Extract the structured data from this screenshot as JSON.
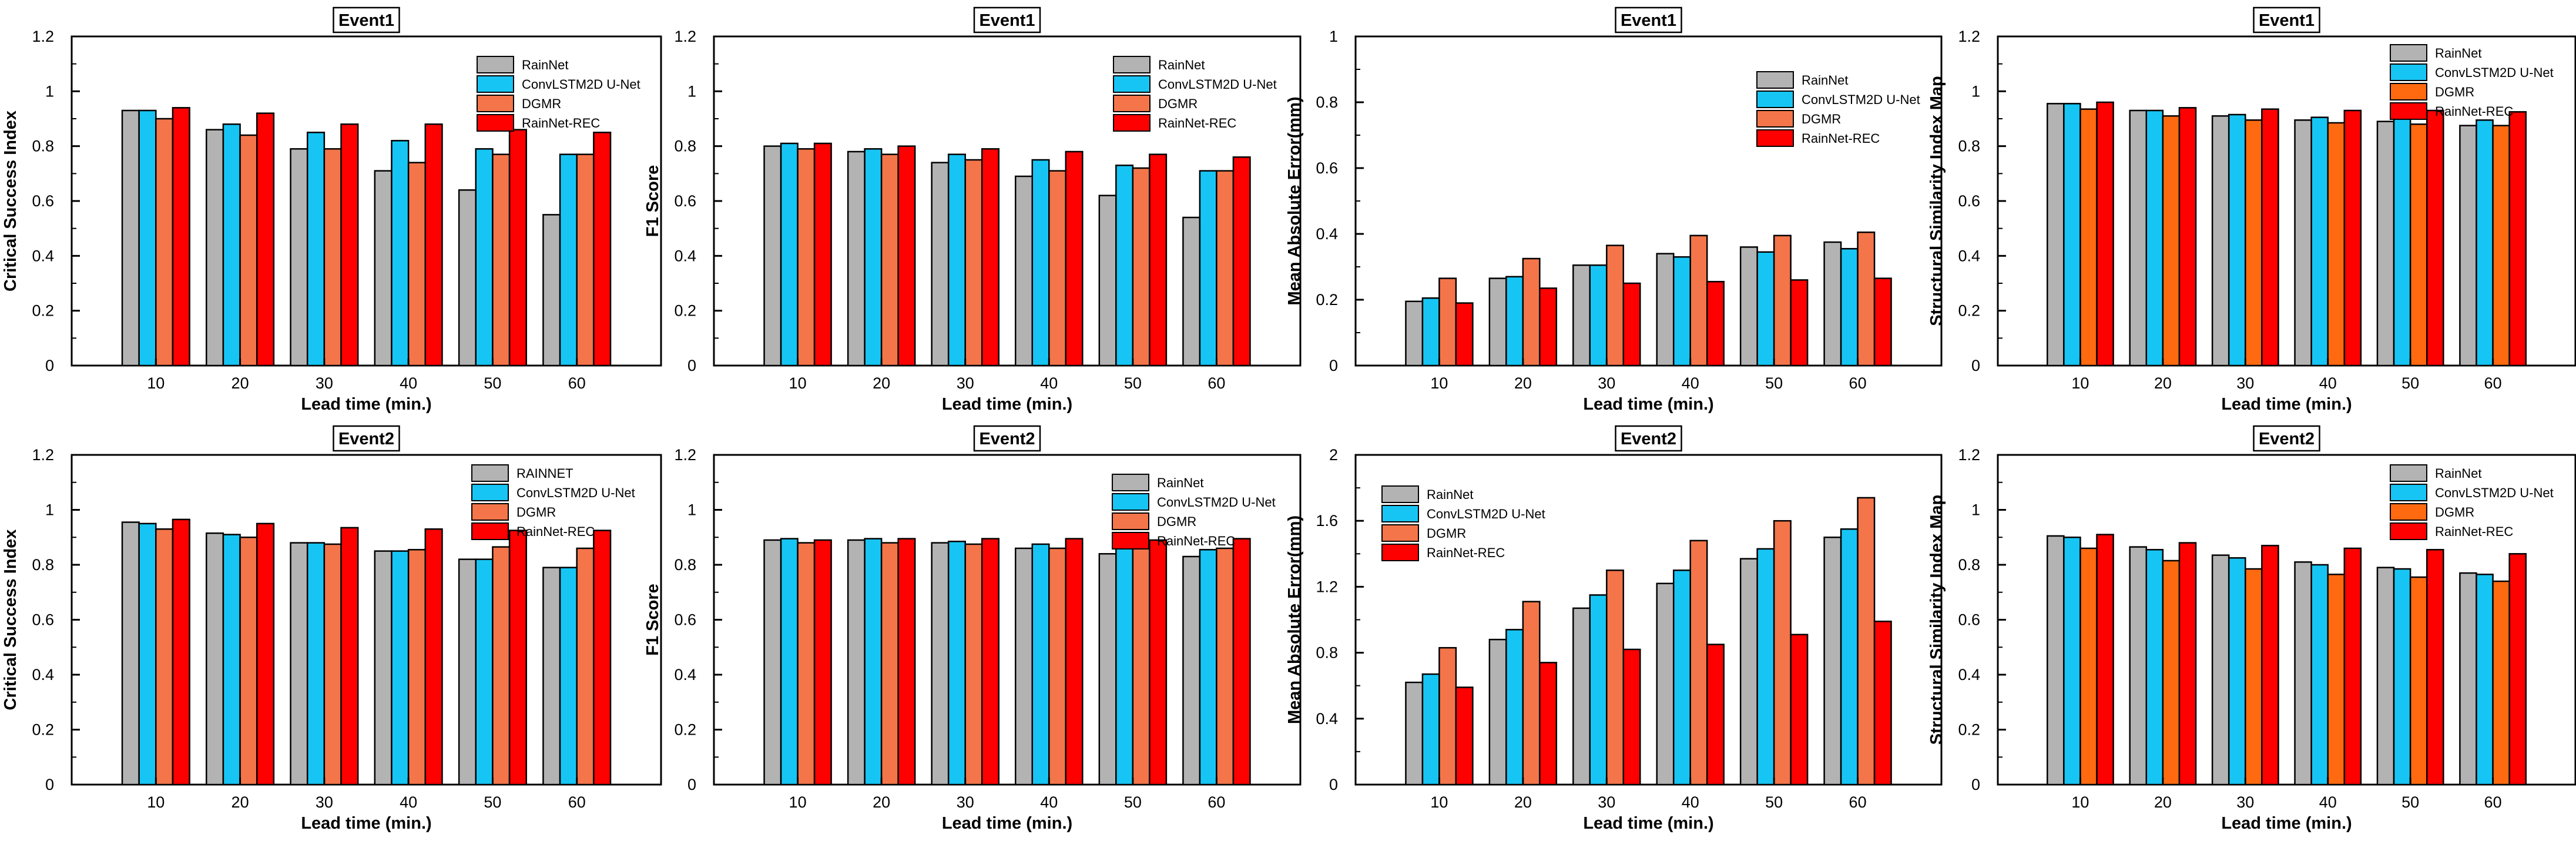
{
  "colors": {
    "RainNet": "#b3b3b3",
    "ConvLSTM2D U-Net": "#17c5f4",
    "DGMR": "#f4754a",
    "RainNet-REC": "#ff0000",
    "DGMR_ssim": "#ff6a10"
  },
  "chart_data": [
    {
      "type": "bar",
      "title": "Event1",
      "xlabel": "Lead time (min.)",
      "ylabel": "Critical Success Index",
      "categories": [
        "10",
        "20",
        "30",
        "40",
        "50",
        "60"
      ],
      "ylim": [
        0,
        1.2
      ],
      "yticks": [
        "0",
        "0.2",
        "0.4",
        "0.6",
        "0.8",
        "1",
        "1.2"
      ],
      "legend_position": "top-right",
      "series": [
        {
          "name": "RainNet",
          "values": [
            0.93,
            0.86,
            0.79,
            0.71,
            0.64,
            0.55
          ]
        },
        {
          "name": "ConvLSTM2D U-Net",
          "values": [
            0.93,
            0.88,
            0.85,
            0.82,
            0.79,
            0.77
          ]
        },
        {
          "name": "DGMR",
          "values": [
            0.9,
            0.84,
            0.79,
            0.74,
            0.77,
            0.77
          ]
        },
        {
          "name": "RainNet-REC",
          "values": [
            0.94,
            0.92,
            0.88,
            0.88,
            0.86,
            0.85
          ]
        }
      ]
    },
    {
      "type": "bar",
      "title": "Event1",
      "xlabel": "Lead time (min.)",
      "ylabel": "F1 Score",
      "categories": [
        "10",
        "20",
        "30",
        "40",
        "50",
        "60"
      ],
      "ylim": [
        0,
        1.2
      ],
      "yticks": [
        "0",
        "0.2",
        "0.4",
        "0.6",
        "0.8",
        "1",
        "1.2"
      ],
      "legend_position": "top-right",
      "series": [
        {
          "name": "RainNet",
          "values": [
            0.8,
            0.78,
            0.74,
            0.69,
            0.62,
            0.54
          ]
        },
        {
          "name": "ConvLSTM2D U-Net",
          "values": [
            0.81,
            0.79,
            0.77,
            0.75,
            0.73,
            0.71
          ]
        },
        {
          "name": "DGMR",
          "values": [
            0.79,
            0.77,
            0.75,
            0.71,
            0.72,
            0.71
          ]
        },
        {
          "name": "RainNet-REC",
          "values": [
            0.81,
            0.8,
            0.79,
            0.78,
            0.77,
            0.76
          ]
        }
      ]
    },
    {
      "type": "bar",
      "title": "Event1",
      "xlabel": "Lead time (min.)",
      "ylabel": "Mean Absolute Error(mm)",
      "categories": [
        "10",
        "20",
        "30",
        "40",
        "50",
        "60"
      ],
      "ylim": [
        0,
        1.0
      ],
      "yticks": [
        "0",
        "0.2",
        "0.4",
        "0.6",
        "0.8",
        "1"
      ],
      "legend_position": "top-right",
      "series": [
        {
          "name": "RainNet",
          "values": [
            0.195,
            0.265,
            0.305,
            0.34,
            0.36,
            0.375
          ]
        },
        {
          "name": "ConvLSTM2D U-Net",
          "values": [
            0.205,
            0.27,
            0.305,
            0.33,
            0.345,
            0.355
          ]
        },
        {
          "name": "DGMR",
          "values": [
            0.265,
            0.325,
            0.365,
            0.395,
            0.395,
            0.405
          ]
        },
        {
          "name": "RainNet-REC",
          "values": [
            0.19,
            0.235,
            0.25,
            0.255,
            0.26,
            0.265
          ]
        }
      ]
    },
    {
      "type": "bar",
      "title": "Event1",
      "xlabel": "Lead time (min.)",
      "ylabel": "Structural Similarity Index Map",
      "categories": [
        "10",
        "20",
        "30",
        "40",
        "50",
        "60"
      ],
      "ylim": [
        0,
        1.2
      ],
      "yticks": [
        "0",
        "0.2",
        "0.4",
        "0.6",
        "0.8",
        "1",
        "1.2"
      ],
      "legend_position": "top-right",
      "series": [
        {
          "name": "RainNet",
          "values": [
            0.955,
            0.93,
            0.91,
            0.895,
            0.89,
            0.875
          ]
        },
        {
          "name": "ConvLSTM2D U-Net",
          "values": [
            0.955,
            0.93,
            0.915,
            0.905,
            0.9,
            0.895
          ]
        },
        {
          "name": "DGMR",
          "values": [
            0.935,
            0.91,
            0.895,
            0.885,
            0.88,
            0.875
          ]
        },
        {
          "name": "RainNet-REC",
          "values": [
            0.96,
            0.94,
            0.935,
            0.93,
            0.93,
            0.925
          ]
        }
      ]
    },
    {
      "type": "bar",
      "title": "Event2",
      "xlabel": "Lead time (min.)",
      "ylabel": "Critical Success Index",
      "categories": [
        "10",
        "20",
        "30",
        "40",
        "50",
        "60"
      ],
      "ylim": [
        0,
        1.2
      ],
      "yticks": [
        "0",
        "0.2",
        "0.4",
        "0.6",
        "0.8",
        "1",
        "1.2"
      ],
      "legend_position": "top-right",
      "series": [
        {
          "name": "RAINNET",
          "values": [
            0.955,
            0.915,
            0.88,
            0.85,
            0.82,
            0.79
          ]
        },
        {
          "name": "ConvLSTM2D U-Net",
          "values": [
            0.95,
            0.91,
            0.88,
            0.85,
            0.82,
            0.79
          ]
        },
        {
          "name": "DGMR",
          "values": [
            0.93,
            0.9,
            0.875,
            0.855,
            0.865,
            0.86
          ]
        },
        {
          "name": "RainNet-REC",
          "values": [
            0.965,
            0.95,
            0.935,
            0.93,
            0.925,
            0.925
          ]
        }
      ]
    },
    {
      "type": "bar",
      "title": "Event2",
      "xlabel": "Lead time (min.)",
      "ylabel": "F1 Score",
      "categories": [
        "10",
        "20",
        "30",
        "40",
        "50",
        "60"
      ],
      "ylim": [
        0,
        1.2
      ],
      "yticks": [
        "0",
        "0.2",
        "0.4",
        "0.6",
        "0.8",
        "1",
        "1.2"
      ],
      "legend_position": "top-right",
      "series": [
        {
          "name": "RainNet",
          "values": [
            0.89,
            0.89,
            0.88,
            0.86,
            0.84,
            0.83
          ]
        },
        {
          "name": "ConvLSTM2D U-Net",
          "values": [
            0.895,
            0.895,
            0.885,
            0.875,
            0.86,
            0.855
          ]
        },
        {
          "name": "DGMR",
          "values": [
            0.88,
            0.88,
            0.875,
            0.86,
            0.865,
            0.86
          ]
        },
        {
          "name": "RainNet-REC",
          "values": [
            0.89,
            0.895,
            0.895,
            0.895,
            0.89,
            0.895
          ]
        }
      ]
    },
    {
      "type": "bar",
      "title": "Event2",
      "xlabel": "Lead time (min.)",
      "ylabel": "Mean Absolute Error(mm)",
      "categories": [
        "10",
        "20",
        "30",
        "40",
        "50",
        "60"
      ],
      "ylim": [
        0,
        2.0
      ],
      "yticks": [
        "0",
        "0.4",
        "0.8",
        "1.2",
        "1.6",
        "2"
      ],
      "legend_position": "top-left",
      "series": [
        {
          "name": "RainNet",
          "values": [
            0.62,
            0.88,
            1.07,
            1.22,
            1.37,
            1.5
          ]
        },
        {
          "name": "ConvLSTM2D U-Net",
          "values": [
            0.67,
            0.94,
            1.15,
            1.3,
            1.43,
            1.55
          ]
        },
        {
          "name": "DGMR",
          "values": [
            0.83,
            1.11,
            1.3,
            1.48,
            1.6,
            1.74
          ]
        },
        {
          "name": "RainNet-REC",
          "values": [
            0.59,
            0.74,
            0.82,
            0.85,
            0.91,
            0.99
          ]
        }
      ]
    },
    {
      "type": "bar",
      "title": "Event2",
      "xlabel": "Lead time (min.)",
      "ylabel": "Structural Similarity Index Map",
      "categories": [
        "10",
        "20",
        "30",
        "40",
        "50",
        "60"
      ],
      "ylim": [
        0,
        1.2
      ],
      "yticks": [
        "0",
        "0.2",
        "0.4",
        "0.6",
        "0.8",
        "1",
        "1.2"
      ],
      "legend_position": "top-right",
      "series": [
        {
          "name": "RainNet",
          "values": [
            0.905,
            0.865,
            0.835,
            0.81,
            0.79,
            0.77
          ]
        },
        {
          "name": "ConvLSTM2D U-Net",
          "values": [
            0.9,
            0.855,
            0.825,
            0.8,
            0.785,
            0.765
          ]
        },
        {
          "name": "DGMR",
          "values": [
            0.86,
            0.815,
            0.785,
            0.765,
            0.755,
            0.74
          ]
        },
        {
          "name": "RainNet-REC",
          "values": [
            0.91,
            0.88,
            0.87,
            0.86,
            0.855,
            0.84
          ]
        }
      ]
    }
  ]
}
